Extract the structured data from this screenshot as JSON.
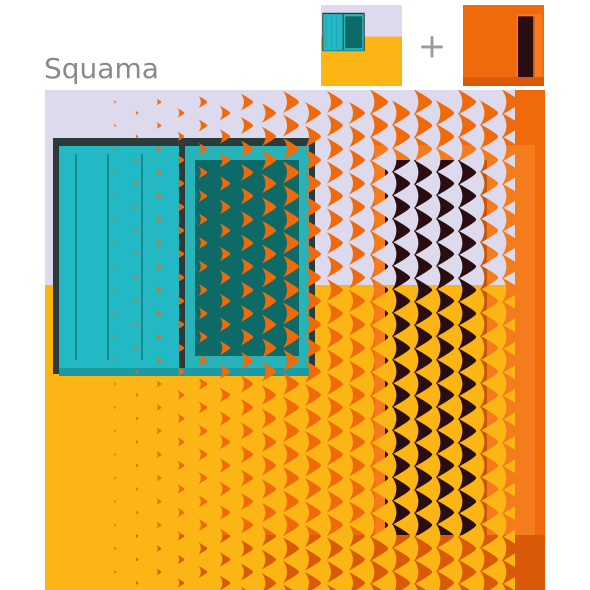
{
  "title": "Squama",
  "operator": "+"
}
